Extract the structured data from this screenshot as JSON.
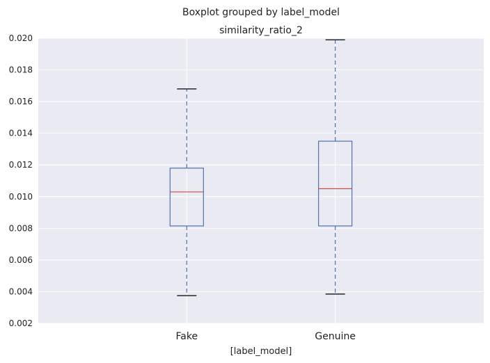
{
  "chart_data": {
    "type": "box",
    "suptitle": "Boxplot grouped by label_model",
    "title": "similarity_ratio_2",
    "xlabel": "[label_model]",
    "ylabel": "",
    "categories": [
      "Fake",
      "Genuine"
    ],
    "ylim": [
      0.002,
      0.02
    ],
    "yticks": [
      0.002,
      0.004,
      0.006,
      0.008,
      0.01,
      0.012,
      0.014,
      0.016,
      0.018,
      0.02
    ],
    "ytick_labels": [
      "0.002",
      "0.004",
      "0.006",
      "0.008",
      "0.010",
      "0.012",
      "0.014",
      "0.016",
      "0.018",
      "0.020"
    ],
    "boxes": [
      {
        "name": "Fake",
        "whisker_low": 0.00375,
        "q1": 0.00815,
        "median": 0.0103,
        "q3": 0.0118,
        "whisker_high": 0.0168
      },
      {
        "name": "Genuine",
        "whisker_low": 0.00385,
        "q1": 0.00815,
        "median": 0.0105,
        "q3": 0.0135,
        "whisker_high": 0.0199
      }
    ],
    "grid": true,
    "colors": {
      "background": "#eaeaf2",
      "grid": "#ffffff",
      "box": "#4c72b0",
      "median": "#c44e52",
      "caps": "#000000"
    }
  }
}
